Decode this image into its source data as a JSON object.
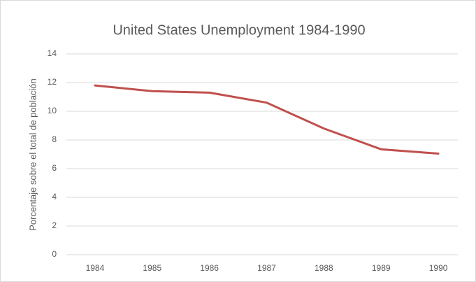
{
  "chart_data": {
    "type": "line",
    "title": "United States Unemployment 1984-1990",
    "y_label": "Porcentaje sobre el total de población",
    "categories": [
      "1984",
      "1985",
      "1986",
      "1987",
      "1988",
      "1989",
      "1990"
    ],
    "values": [
      11.8,
      11.4,
      11.3,
      10.6,
      8.8,
      7.35,
      7.05
    ],
    "color": "#c0504d",
    "ylim": [
      0,
      14
    ],
    "yticks": [
      0,
      2,
      4,
      6,
      8,
      10,
      12,
      14
    ],
    "grid": true
  }
}
